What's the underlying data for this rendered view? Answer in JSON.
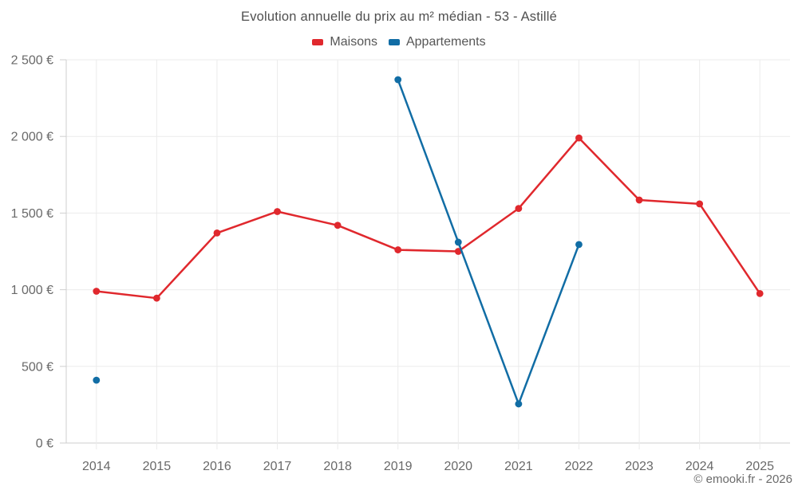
{
  "chart_data": {
    "type": "line",
    "title": "Evolution annuelle du prix au m² médian - 53 - Astillé",
    "categories": [
      "2014",
      "2015",
      "2016",
      "2017",
      "2018",
      "2019",
      "2020",
      "2021",
      "2022",
      "2023",
      "2024",
      "2025"
    ],
    "series": [
      {
        "id": "maisons",
        "name": "Maisons",
        "color": "#e0282d",
        "values": [
          990,
          945,
          1370,
          1510,
          1420,
          1260,
          1250,
          1530,
          1990,
          1585,
          1560,
          975
        ]
      },
      {
        "id": "appartements",
        "name": "Appartements",
        "color": "#116da5",
        "values": [
          410,
          null,
          null,
          null,
          null,
          2370,
          1310,
          255,
          1295,
          null,
          null,
          null
        ]
      }
    ],
    "ylim": [
      0,
      2500
    ],
    "yticks": [
      {
        "value": 0,
        "label": "0 €"
      },
      {
        "value": 500,
        "label": "500 €"
      },
      {
        "value": 1000,
        "label": "1 000 €"
      },
      {
        "value": 1500,
        "label": "1 500 €"
      },
      {
        "value": 2000,
        "label": "2 000 €"
      },
      {
        "value": 2500,
        "label": "2 500 €"
      }
    ],
    "grid": true,
    "legend_position": "top",
    "xlabel": "",
    "ylabel": ""
  },
  "footer": {
    "copyright": "© emooki.fr - 2026"
  },
  "colors": {
    "grid": "#ebebeb",
    "axis": "#cfcfcf",
    "tick_label": "#696969",
    "title": "#4f4f4f"
  }
}
